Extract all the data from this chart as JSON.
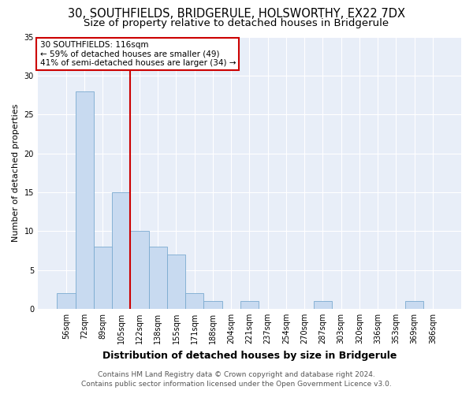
{
  "title": "30, SOUTHFIELDS, BRIDGERULE, HOLSWORTHY, EX22 7DX",
  "subtitle": "Size of property relative to detached houses in Bridgerule",
  "xlabel": "Distribution of detached houses by size in Bridgerule",
  "ylabel": "Number of detached properties",
  "bin_labels": [
    "56sqm",
    "72sqm",
    "89sqm",
    "105sqm",
    "122sqm",
    "138sqm",
    "155sqm",
    "171sqm",
    "188sqm",
    "204sqm",
    "221sqm",
    "237sqm",
    "254sqm",
    "270sqm",
    "287sqm",
    "303sqm",
    "320sqm",
    "336sqm",
    "353sqm",
    "369sqm",
    "386sqm"
  ],
  "bar_values": [
    2,
    28,
    8,
    15,
    10,
    8,
    7,
    2,
    1,
    0,
    1,
    0,
    0,
    0,
    1,
    0,
    0,
    0,
    0,
    1,
    0
  ],
  "bar_color": "#c8daf0",
  "bar_edge_color": "#7aaad0",
  "vline_color": "#cc0000",
  "annotation_line1": "30 SOUTHFIELDS: 116sqm",
  "annotation_line2": "← 59% of detached houses are smaller (49)",
  "annotation_line3": "41% of semi-detached houses are larger (34) →",
  "annotation_box_facecolor": "#ffffff",
  "annotation_box_edgecolor": "#cc0000",
  "ylim": [
    0,
    35
  ],
  "yticks": [
    0,
    5,
    10,
    15,
    20,
    25,
    30,
    35
  ],
  "plot_bg_color": "#e8eef8",
  "fig_bg_color": "#ffffff",
  "footer_line1": "Contains HM Land Registry data © Crown copyright and database right 2024.",
  "footer_line2": "Contains public sector information licensed under the Open Government Licence v3.0.",
  "title_fontsize": 10.5,
  "subtitle_fontsize": 9.5,
  "xlabel_fontsize": 9,
  "ylabel_fontsize": 8,
  "tick_fontsize": 7,
  "annotation_fontsize": 7.5,
  "footer_fontsize": 6.5
}
